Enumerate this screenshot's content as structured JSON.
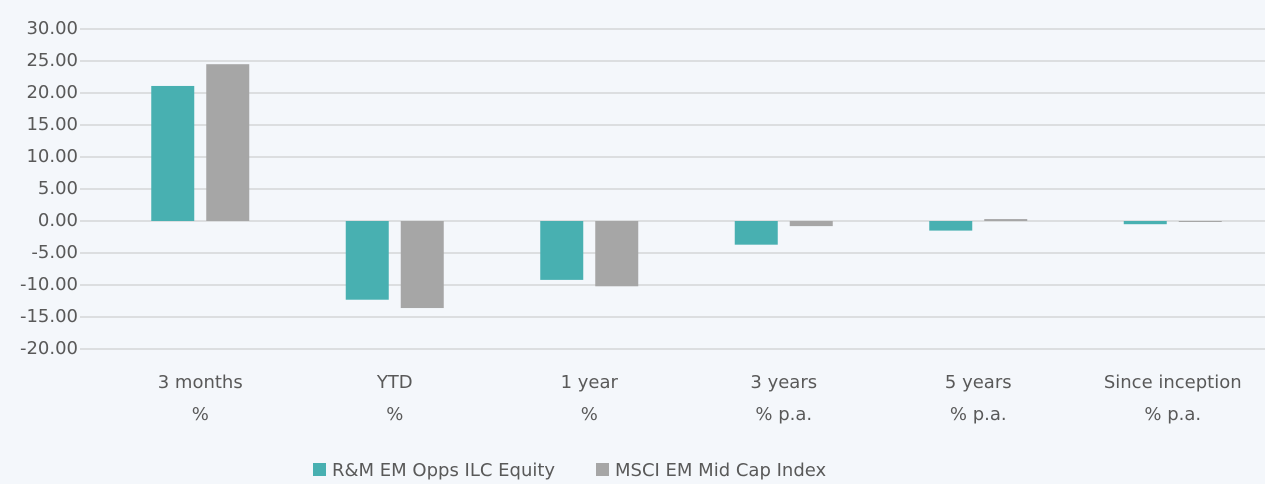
{
  "chart_data": {
    "type": "bar",
    "categories": [
      [
        "3 months",
        "%"
      ],
      [
        "YTD",
        "%"
      ],
      [
        "1 year",
        "%"
      ],
      [
        "3 years",
        "% p.a."
      ],
      [
        "5 years",
        "% p.a."
      ],
      [
        "Since inception",
        "% p.a."
      ]
    ],
    "series": [
      {
        "name": "R&M EM Opps ILC Equity",
        "color": "#48b0b1",
        "values": [
          21.1,
          -12.3,
          -9.2,
          -3.7,
          -1.5,
          -0.5
        ]
      },
      {
        "name": "MSCI EM Mid Cap Index",
        "color": "#a6a6a6",
        "values": [
          24.5,
          -13.6,
          -10.2,
          -0.8,
          0.3,
          -0.1
        ]
      }
    ],
    "ylim": [
      -20,
      30
    ],
    "yticks": [
      {
        "value": -20,
        "label": "-20.00"
      },
      {
        "value": -15,
        "label": "-15.00"
      },
      {
        "value": -10,
        "label": "-10.00"
      },
      {
        "value": -5,
        "label": "-5.00"
      },
      {
        "value": 0,
        "label": "0.00"
      },
      {
        "value": 5,
        "label": "5.00"
      },
      {
        "value": 10,
        "label": "10.00"
      },
      {
        "value": 15,
        "label": "15.00"
      },
      {
        "value": 20,
        "label": "20.00"
      },
      {
        "value": 25,
        "label": "25.00"
      },
      {
        "value": 30,
        "label": "30.00"
      }
    ],
    "grid": true,
    "legend": "bottom"
  }
}
